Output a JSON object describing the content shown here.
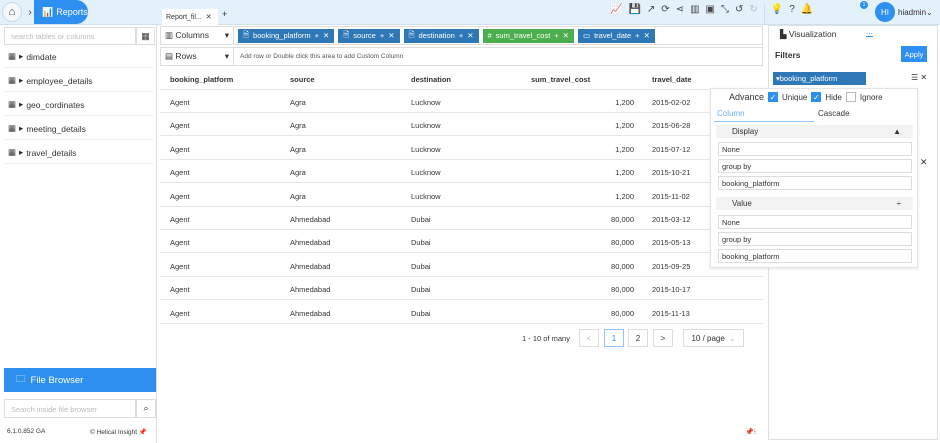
{
  "topbar": {
    "reports": "Reports",
    "tab": "Report_fil...",
    "user": "hiadmin",
    "initials": "HI",
    "notifications": "1"
  },
  "left": {
    "search_placeholder": "search tables or columns",
    "tables": [
      "dimdate",
      "employee_details",
      "geo_cordinates",
      "meeting_details",
      "travel_details"
    ],
    "file_browser": "File Browser",
    "fb_placeholder": "Search inside file browser",
    "version": "6.1.0.852 GA",
    "brand": "Helical Insight"
  },
  "shelves": {
    "columns_label": "Columns",
    "rows_label": "Rows",
    "rows_hint": "Add row or Double click this area to add Custom Column",
    "chips": [
      {
        "label": "booking_platform",
        "icon": "doc",
        "color": "#2f78b8"
      },
      {
        "label": "source",
        "icon": "doc",
        "color": "#2f78b8"
      },
      {
        "label": "destination",
        "icon": "doc",
        "color": "#2f78b8"
      },
      {
        "label": "sum_travel_cost",
        "icon": "#",
        "color": "#4cae4c"
      },
      {
        "label": "travel_date",
        "icon": "calendar",
        "color": "#2f78b8"
      }
    ]
  },
  "table": {
    "headers": [
      "booking_platform",
      "source",
      "destination",
      "sum_travel_cost",
      "travel_date"
    ],
    "rows": [
      [
        "Agent",
        "Agra",
        "Lucknow",
        "1,200",
        "2015-02-02"
      ],
      [
        "Agent",
        "Agra",
        "Lucknow",
        "1,200",
        "2015-06-28"
      ],
      [
        "Agent",
        "Agra",
        "Lucknow",
        "1,200",
        "2015-07-12"
      ],
      [
        "Agent",
        "Agra",
        "Lucknow",
        "1,200",
        "2015-10-21"
      ],
      [
        "Agent",
        "Agra",
        "Lucknow",
        "1,200",
        "2015-11-02"
      ],
      [
        "Agent",
        "Ahmedabad",
        "Dubai",
        "80,000",
        "2015-03-12"
      ],
      [
        "Agent",
        "Ahmedabad",
        "Dubai",
        "80,000",
        "2015-05-13"
      ],
      [
        "Agent",
        "Ahmedabad",
        "Dubai",
        "80,000",
        "2015-09-25"
      ],
      [
        "Agent",
        "Ahmedabad",
        "Dubai",
        "80,000",
        "2015-10-17"
      ],
      [
        "Agent",
        "Ahmedabad",
        "Dubai",
        "80,000",
        "2015-11-13"
      ]
    ]
  },
  "pagination": {
    "summary": "1 - 10 of many",
    "prev": "<",
    "pages": [
      "1",
      "2"
    ],
    "current": "1",
    "next": ">",
    "page_size": "10 / page"
  },
  "right": {
    "visualization": "Visualization",
    "more": "...",
    "filters": "Filters",
    "apply": "Apply",
    "filter_chip": "booking_platform",
    "popup": {
      "advance": "Advance",
      "unique": "Unique",
      "unique_checked": true,
      "hide": "Hide",
      "hide_checked": true,
      "ignore": "Ignore",
      "ignore_checked": false,
      "tabs": [
        "Column",
        "Cascade"
      ],
      "display": "Display",
      "display_options": [
        "None",
        "group by",
        "booking_platform"
      ],
      "value": "Value",
      "value_options": [
        "None",
        "group by",
        "booking_platform"
      ]
    }
  },
  "colors": {
    "accent": "#2d8ff0",
    "chip_blue": "#2f78b8",
    "chip_green": "#4cae4c"
  }
}
